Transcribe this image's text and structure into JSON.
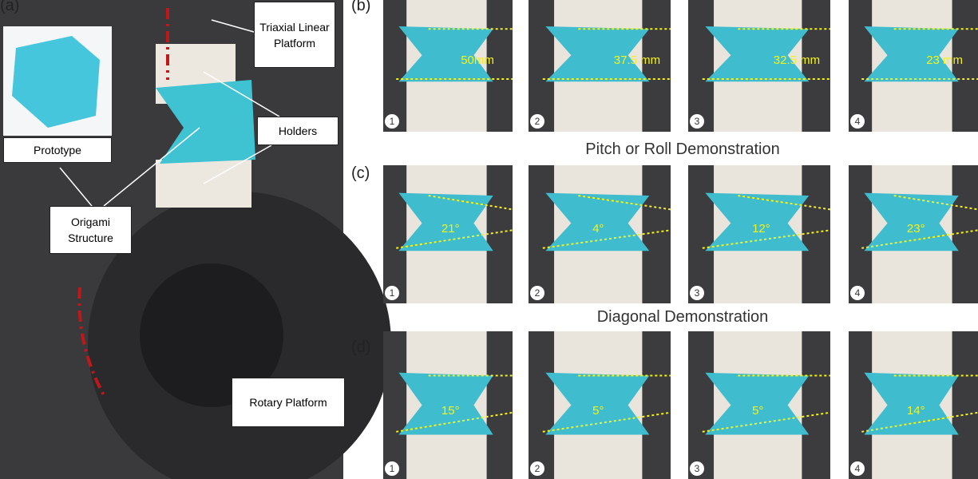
{
  "panels": [
    "(a)",
    "(b)",
    "(c)",
    "(d)"
  ],
  "callouts": {
    "triaxial": "Triaxial Linear Platform",
    "holders": "Holders",
    "prototype": "Prototype",
    "origami": "Origami Structure",
    "rotary": "Rotary Platform"
  },
  "section_titles": [
    "Pitch or Roll Demonstration",
    "Diagonal Demonstration"
  ],
  "rows": [
    {
      "measurements": [
        "50mm",
        "37.5 mm",
        "32.5 mm",
        "23 mm"
      ]
    },
    {
      "measurements": [
        "21°",
        "4°",
        "12°",
        "23°"
      ]
    },
    {
      "measurements": [
        "15°",
        "5°",
        "5°",
        "14°"
      ]
    }
  ],
  "steps": [
    "1",
    "2",
    "3",
    "4"
  ]
}
